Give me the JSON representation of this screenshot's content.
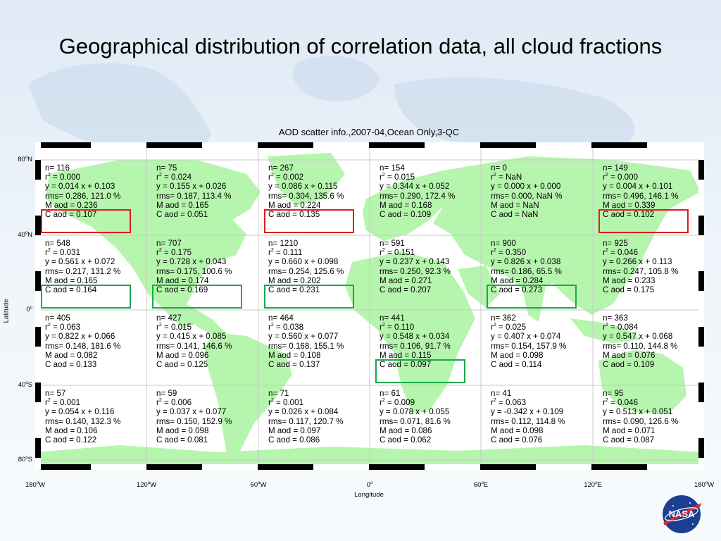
{
  "title": "Geographical distribution of correlation data, all cloud fractions",
  "plot_title": "AOD scatter info.,2007-04,Ocean Only,3-QC",
  "axes": {
    "xlabel": "Longitude",
    "ylabel": "Latitude",
    "x_ticks": [
      {
        "num": "180",
        "sup": "o",
        "dir": "W"
      },
      {
        "num": "120",
        "sup": "o",
        "dir": "W"
      },
      {
        "num": "60",
        "sup": "o",
        "dir": "W"
      },
      {
        "num": "0",
        "sup": "o",
        "dir": ""
      },
      {
        "num": "60",
        "sup": "o",
        "dir": "E"
      },
      {
        "num": "120",
        "sup": "o",
        "dir": "E"
      },
      {
        "num": "180",
        "sup": "o",
        "dir": "W"
      }
    ],
    "y_ticks": [
      {
        "num": "80",
        "sup": "o",
        "dir": "N"
      },
      {
        "num": "40",
        "sup": "o",
        "dir": "N"
      },
      {
        "num": "0",
        "sup": "o",
        "dir": ""
      },
      {
        "num": "40",
        "sup": "o",
        "dir": "S"
      },
      {
        "num": "80",
        "sup": "o",
        "dir": "S"
      }
    ]
  },
  "highlight_colors": {
    "red": "#e01b1b",
    "green": "#19a84c",
    "land": "#b6f5ad"
  },
  "cells": [
    [
      {
        "n": "n= 116",
        "r2": "= 0.000",
        "fit": "y = 0.014 x + 0.103",
        "rms": "rms= 0.286, 121.0 %",
        "m": "M aod = 0.236",
        "c": "C aod = 0.107",
        "hl": "red"
      },
      {
        "n": "n= 75",
        "r2": "= 0.024",
        "fit": "y = 0.155 x + 0.026",
        "rms": "rms= 0.187, 113.4 %",
        "m": "M aod = 0.165",
        "c": "C aod = 0.051",
        "hl": ""
      },
      {
        "n": "n= 267",
        "r2": "= 0.002",
        "fit": "y = 0.086 x + 0.115",
        "rms": "rms= 0.304, 135.6 %",
        "m": "M aod = 0.224",
        "c": "C aod = 0.135",
        "hl": "red"
      },
      {
        "n": "n= 154",
        "r2": "= 0.015",
        "fit": "y = 0.344 x + 0.052",
        "rms": "rms= 0.290, 172.4 %",
        "m": "M aod = 0.168",
        "c": "C aod = 0.109",
        "hl": ""
      },
      {
        "n": "n= 0",
        "r2": "=   NaN",
        "fit": "y = 0.000 x + 0.000",
        "rms": "rms= 0.000, NaN %",
        "m": "M aod =   NaN",
        "c": "C aod =   NaN",
        "hl": ""
      },
      {
        "n": "n= 149",
        "r2": "= 0.000",
        "fit": "y = 0.004 x + 0.101",
        "rms": "rms= 0.496, 146.1 %",
        "m": "M aod = 0.339",
        "c": "C aod = 0.102",
        "hl": "red"
      }
    ],
    [
      {
        "n": "n= 548",
        "r2": "= 0.031",
        "fit": "y = 0.561 x + 0.072",
        "rms": "rms= 0.217, 131.2 %",
        "m": "M aod = 0.165",
        "c": "C aod = 0.164",
        "hl": "green"
      },
      {
        "n": "n= 707",
        "r2": "= 0.175",
        "fit": "y = 0.728 x + 0.043",
        "rms": "rms= 0.175, 100.6 %",
        "m": "M aod = 0.174",
        "c": "C aod = 0.169",
        "hl": "green"
      },
      {
        "n": "n= 1210",
        "r2": "= 0.111",
        "fit": "y = 0.660 x + 0.098",
        "rms": "rms= 0.254, 125.6 %",
        "m": "M aod = 0.202",
        "c": "C aod = 0.231",
        "hl": "green"
      },
      {
        "n": "n= 591",
        "r2": "= 0.151",
        "fit": "y = 0.237 x + 0.143",
        "rms": "rms= 0.250, 92.3 %",
        "m": "M aod = 0.271",
        "c": "C aod = 0.207",
        "hl": ""
      },
      {
        "n": "n= 900",
        "r2": "= 0.350",
        "fit": "y = 0.826 x + 0.038",
        "rms": "rms= 0.186, 65.5 %",
        "m": "M aod = 0.284",
        "c": "C aod = 0.273",
        "hl": "green"
      },
      {
        "n": "n= 925",
        "r2": "= 0.046",
        "fit": "y = 0.266 x + 0.113",
        "rms": "rms= 0.247, 105.8 %",
        "m": "M aod = 0.233",
        "c": "C aod = 0.175",
        "hl": ""
      }
    ],
    [
      {
        "n": "n= 405",
        "r2": "= 0.063",
        "fit": "y = 0.822 x + 0.066",
        "rms": "rms= 0.148, 181.6 %",
        "m": "M aod = 0.082",
        "c": "C aod = 0.133",
        "hl": ""
      },
      {
        "n": "n= 427",
        "r2": "= 0.015",
        "fit": "y = 0.415 x + 0.085",
        "rms": "rms= 0.141, 146.6 %",
        "m": "M aod = 0.096",
        "c": "C aod = 0.125",
        "hl": ""
      },
      {
        "n": "n= 464",
        "r2": "= 0.038",
        "fit": "y = 0.560 x + 0.077",
        "rms": "rms= 0.168, 155.1 %",
        "m": "M aod = 0.108",
        "c": "C aod = 0.137",
        "hl": ""
      },
      {
        "n": "n= 441",
        "r2": "= 0.110",
        "fit": "y = 0.548 x + 0.034",
        "rms": "rms= 0.106, 91.7 %",
        "m": "M aod = 0.115",
        "c": "C aod = 0.097",
        "hl": "green"
      },
      {
        "n": "n= 362",
        "r2": "= 0.025",
        "fit": "y = 0.407 x + 0.074",
        "rms": "rms= 0.154, 157.9 %",
        "m": "M aod = 0.098",
        "c": "C aod = 0.114",
        "hl": ""
      },
      {
        "n": "n= 363",
        "r2": "= 0.084",
        "fit": "y = 0.547 x + 0.068",
        "rms": "rms= 0.110, 144.8 %",
        "m": "M aod = 0.076",
        "c": "C aod = 0.109",
        "hl": ""
      }
    ],
    [
      {
        "n": "n= 57",
        "r2": "= 0.001",
        "fit": "y = 0.054 x + 0.116",
        "rms": "rms= 0.140, 132.3 %",
        "m": "M aod = 0.106",
        "c": "C aod = 0.122",
        "hl": ""
      },
      {
        "n": "n= 59",
        "r2": "= 0.006",
        "fit": "y = 0.037 x + 0.077",
        "rms": "rms= 0.150, 152.9 %",
        "m": "M aod = 0.098",
        "c": "C aod = 0.081",
        "hl": ""
      },
      {
        "n": "n= 71",
        "r2": "= 0.001",
        "fit": "y = 0.026 x + 0.084",
        "rms": "rms= 0.117, 120.7 %",
        "m": "M aod = 0.097",
        "c": "C aod = 0.086",
        "hl": ""
      },
      {
        "n": "n= 61",
        "r2": "= 0.009",
        "fit": "y = 0.078 x + 0.055",
        "rms": "rms= 0.071, 81.6 %",
        "m": "M aod = 0.086",
        "c": "C aod = 0.062",
        "hl": ""
      },
      {
        "n": "n= 41",
        "r2": "= 0.063",
        "fit": "y = -0.342 x + 0.109",
        "rms": "rms= 0.112, 114.8 %",
        "m": "M aod = 0.098",
        "c": "C aod = 0.076",
        "hl": ""
      },
      {
        "n": "n= 95",
        "r2": "= 0.046",
        "fit": "y = 0.513 x + 0.051",
        "rms": "rms= 0.090, 126.6 %",
        "m": "M aod = 0.071",
        "c": "C aod = 0.087",
        "hl": ""
      }
    ]
  ],
  "logo": {
    "text": "NASA"
  }
}
